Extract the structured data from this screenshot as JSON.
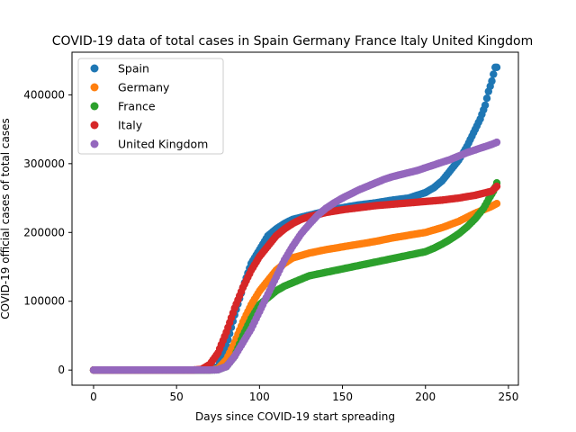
{
  "chart_data": {
    "type": "scatter",
    "title": "COVID-19 data of total cases in Spain Germany France Italy United Kingdom",
    "xlabel": "Days since COVID-19 start spreading",
    "ylabel": "COVID-19 official cases of total cases",
    "xlim": [
      -13,
      256
    ],
    "ylim": [
      -22000,
      462000
    ],
    "xticks": [
      0,
      50,
      100,
      150,
      200,
      250
    ],
    "yticks": [
      0,
      100000,
      200000,
      300000,
      400000
    ],
    "legend_position": "top-left",
    "x_range": [
      0,
      243
    ],
    "series": [
      {
        "name": "Spain",
        "color": "#1f77b4",
        "points": [
          [
            0,
            0
          ],
          [
            60,
            0
          ],
          [
            70,
            500
          ],
          [
            75,
            5000
          ],
          [
            80,
            35000
          ],
          [
            85,
            80000
          ],
          [
            90,
            120000
          ],
          [
            95,
            155000
          ],
          [
            100,
            175000
          ],
          [
            105,
            195000
          ],
          [
            110,
            205000
          ],
          [
            115,
            213000
          ],
          [
            120,
            219000
          ],
          [
            130,
            225000
          ],
          [
            140,
            231000
          ],
          [
            150,
            236000
          ],
          [
            160,
            240000
          ],
          [
            170,
            243000
          ],
          [
            180,
            247000
          ],
          [
            190,
            250000
          ],
          [
            195,
            254000
          ],
          [
            200,
            258000
          ],
          [
            205,
            265000
          ],
          [
            210,
            275000
          ],
          [
            215,
            290000
          ],
          [
            220,
            305000
          ],
          [
            225,
            325000
          ],
          [
            230,
            350000
          ],
          [
            233,
            365000
          ],
          [
            236,
            385000
          ],
          [
            238,
            405000
          ],
          [
            240,
            420000
          ],
          [
            242,
            440000
          ],
          [
            243,
            440000
          ]
        ]
      },
      {
        "name": "Germany",
        "color": "#ff7f0e",
        "points": [
          [
            0,
            0
          ],
          [
            60,
            0
          ],
          [
            70,
            0
          ],
          [
            75,
            2000
          ],
          [
            80,
            15000
          ],
          [
            85,
            40000
          ],
          [
            90,
            70000
          ],
          [
            95,
            95000
          ],
          [
            100,
            115000
          ],
          [
            105,
            130000
          ],
          [
            110,
            145000
          ],
          [
            115,
            155000
          ],
          [
            120,
            163000
          ],
          [
            130,
            170000
          ],
          [
            140,
            175000
          ],
          [
            150,
            179000
          ],
          [
            160,
            183000
          ],
          [
            170,
            187000
          ],
          [
            180,
            192000
          ],
          [
            190,
            196000
          ],
          [
            200,
            200000
          ],
          [
            210,
            207000
          ],
          [
            220,
            216000
          ],
          [
            230,
            228000
          ],
          [
            240,
            238000
          ],
          [
            243,
            242000
          ]
        ]
      },
      {
        "name": "France",
        "color": "#2ca02c",
        "points": [
          [
            0,
            0
          ],
          [
            60,
            0
          ],
          [
            70,
            0
          ],
          [
            75,
            500
          ],
          [
            80,
            5000
          ],
          [
            85,
            20000
          ],
          [
            90,
            50000
          ],
          [
            95,
            75000
          ],
          [
            100,
            95000
          ],
          [
            105,
            105000
          ],
          [
            110,
            115000
          ],
          [
            115,
            122000
          ],
          [
            120,
            127000
          ],
          [
            125,
            132000
          ],
          [
            130,
            137000
          ],
          [
            140,
            142000
          ],
          [
            150,
            147000
          ],
          [
            160,
            152000
          ],
          [
            170,
            157000
          ],
          [
            180,
            162000
          ],
          [
            190,
            167000
          ],
          [
            200,
            172000
          ],
          [
            205,
            177000
          ],
          [
            210,
            183000
          ],
          [
            215,
            190000
          ],
          [
            220,
            198000
          ],
          [
            225,
            208000
          ],
          [
            230,
            220000
          ],
          [
            235,
            235000
          ],
          [
            238,
            248000
          ],
          [
            241,
            260000
          ],
          [
            243,
            272000
          ]
        ]
      },
      {
        "name": "Italy",
        "color": "#d62728",
        "points": [
          [
            0,
            0
          ],
          [
            60,
            0
          ],
          [
            65,
            1000
          ],
          [
            70,
            8000
          ],
          [
            75,
            25000
          ],
          [
            80,
            55000
          ],
          [
            85,
            90000
          ],
          [
            90,
            120000
          ],
          [
            95,
            145000
          ],
          [
            100,
            165000
          ],
          [
            105,
            180000
          ],
          [
            110,
            195000
          ],
          [
            115,
            205000
          ],
          [
            120,
            213000
          ],
          [
            125,
            219000
          ],
          [
            130,
            223000
          ],
          [
            140,
            229000
          ],
          [
            150,
            233000
          ],
          [
            160,
            236000
          ],
          [
            170,
            239000
          ],
          [
            180,
            241000
          ],
          [
            190,
            243000
          ],
          [
            200,
            245000
          ],
          [
            210,
            247000
          ],
          [
            220,
            250000
          ],
          [
            230,
            254000
          ],
          [
            240,
            260000
          ],
          [
            243,
            267000
          ]
        ]
      },
      {
        "name": "United Kingdom",
        "color": "#9467bd",
        "points": [
          [
            0,
            0
          ],
          [
            60,
            0
          ],
          [
            70,
            0
          ],
          [
            75,
            500
          ],
          [
            80,
            5000
          ],
          [
            85,
            20000
          ],
          [
            90,
            40000
          ],
          [
            95,
            60000
          ],
          [
            100,
            85000
          ],
          [
            105,
            110000
          ],
          [
            110,
            135000
          ],
          [
            115,
            160000
          ],
          [
            120,
            180000
          ],
          [
            125,
            198000
          ],
          [
            130,
            212000
          ],
          [
            135,
            225000
          ],
          [
            140,
            235000
          ],
          [
            145,
            243000
          ],
          [
            150,
            250000
          ],
          [
            155,
            256000
          ],
          [
            160,
            262000
          ],
          [
            165,
            267000
          ],
          [
            170,
            272000
          ],
          [
            175,
            277000
          ],
          [
            180,
            281000
          ],
          [
            185,
            284000
          ],
          [
            190,
            287000
          ],
          [
            195,
            290000
          ],
          [
            200,
            294000
          ],
          [
            205,
            298000
          ],
          [
            210,
            302000
          ],
          [
            215,
            306000
          ],
          [
            220,
            311000
          ],
          [
            225,
            316000
          ],
          [
            230,
            320000
          ],
          [
            235,
            324000
          ],
          [
            240,
            328000
          ],
          [
            243,
            331000
          ]
        ]
      }
    ]
  }
}
